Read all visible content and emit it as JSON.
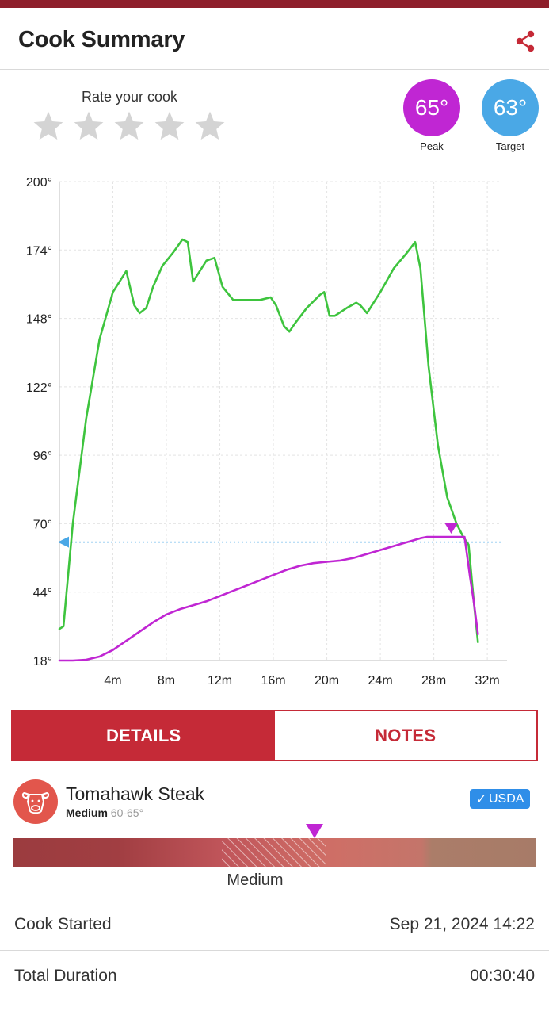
{
  "header": {
    "title": "Cook Summary",
    "share_icon": "share-icon"
  },
  "rating": {
    "label": "Rate your cook",
    "stars": 5,
    "selected": 0,
    "star_color": "#d4d4d4"
  },
  "badges": {
    "peak": {
      "value": "65°",
      "label": "Peak",
      "color": "#c026d3"
    },
    "target": {
      "value": "63°",
      "label": "Target",
      "color": "#4aa8e6"
    }
  },
  "chart_data": {
    "type": "line",
    "xlabel": "",
    "ylabel": "",
    "x_unit": "minutes",
    "xlim": [
      0,
      33
    ],
    "ylim": [
      18,
      200
    ],
    "x_ticks": [
      "4m",
      "8m",
      "12m",
      "16m",
      "20m",
      "24m",
      "28m",
      "32m"
    ],
    "x_tick_values": [
      4,
      8,
      12,
      16,
      20,
      24,
      28,
      32
    ],
    "y_ticks": [
      "18°",
      "44°",
      "70°",
      "96°",
      "122°",
      "148°",
      "174°",
      "200°"
    ],
    "y_tick_values": [
      18,
      44,
      70,
      96,
      122,
      148,
      174,
      200
    ],
    "grid": true,
    "target_line": {
      "value": 63,
      "color": "#4aa8e6",
      "style": "dotted"
    },
    "peak_marker": {
      "x": 29.3,
      "y": 65,
      "color": "#c026d3"
    },
    "series": [
      {
        "color": "#3ec43e",
        "points": [
          [
            0,
            30
          ],
          [
            0.3,
            31
          ],
          [
            1,
            70
          ],
          [
            2,
            110
          ],
          [
            3,
            140
          ],
          [
            4,
            158
          ],
          [
            5,
            166
          ],
          [
            5.6,
            153
          ],
          [
            6,
            150
          ],
          [
            6.5,
            152
          ],
          [
            7,
            160
          ],
          [
            7.7,
            168
          ],
          [
            8.5,
            173
          ],
          [
            9.2,
            178
          ],
          [
            9.6,
            177
          ],
          [
            10,
            162
          ],
          [
            11,
            170
          ],
          [
            11.6,
            171
          ],
          [
            12.2,
            160
          ],
          [
            13,
            155
          ],
          [
            14,
            155
          ],
          [
            15,
            155
          ],
          [
            15.8,
            156
          ],
          [
            16.2,
            153
          ],
          [
            16.8,
            145
          ],
          [
            17.2,
            143
          ],
          [
            17.6,
            146
          ],
          [
            18.5,
            152
          ],
          [
            19.5,
            157
          ],
          [
            19.8,
            158
          ],
          [
            20.2,
            149
          ],
          [
            20.6,
            149
          ],
          [
            21.5,
            152
          ],
          [
            22.2,
            154
          ],
          [
            22.5,
            153
          ],
          [
            23,
            150
          ],
          [
            24,
            158
          ],
          [
            25,
            167
          ],
          [
            26,
            173
          ],
          [
            26.6,
            177
          ],
          [
            27,
            167
          ],
          [
            27.6,
            130
          ],
          [
            28.3,
            100
          ],
          [
            29,
            80
          ],
          [
            29.7,
            70
          ],
          [
            30.2,
            65
          ],
          [
            30.6,
            62
          ],
          [
            31,
            40
          ],
          [
            31.3,
            25
          ]
        ]
      },
      {
        "color": "#c026d3",
        "points": [
          [
            0,
            18
          ],
          [
            1,
            18
          ],
          [
            2,
            18.3
          ],
          [
            3,
            19.5
          ],
          [
            4,
            22
          ],
          [
            5,
            25.5
          ],
          [
            6,
            29
          ],
          [
            7,
            32.5
          ],
          [
            8,
            35.5
          ],
          [
            9,
            37.5
          ],
          [
            10,
            39
          ],
          [
            11,
            40.5
          ],
          [
            12,
            42.5
          ],
          [
            13,
            44.5
          ],
          [
            14,
            46.5
          ],
          [
            15,
            48.5
          ],
          [
            16,
            50.5
          ],
          [
            17,
            52.5
          ],
          [
            18,
            54
          ],
          [
            19,
            55
          ],
          [
            20,
            55.5
          ],
          [
            21,
            56
          ],
          [
            22,
            57
          ],
          [
            23,
            58.5
          ],
          [
            24,
            60
          ],
          [
            25,
            61.5
          ],
          [
            26,
            63
          ],
          [
            27,
            64.5
          ],
          [
            27.5,
            65
          ],
          [
            28,
            65
          ],
          [
            29,
            65
          ],
          [
            30.3,
            65
          ],
          [
            30.7,
            50
          ],
          [
            31,
            40
          ],
          [
            31.3,
            28
          ]
        ]
      }
    ]
  },
  "tabs": {
    "details": "DETAILS",
    "notes": "NOTES"
  },
  "meat": {
    "name": "Tomahawk Steak",
    "doneness": "Medium",
    "range": "60-65°",
    "icon": "cow-icon",
    "usda": "USDA",
    "usda_color": "#2f8ee8"
  },
  "doneness_bar": {
    "label": "Medium",
    "level": 0.57
  },
  "details": {
    "cook_started_label": "Cook Started",
    "cook_started_value": "Sep 21, 2024 14:22",
    "total_duration_label": "Total Duration",
    "total_duration_value": "00:30:40"
  },
  "colors": {
    "brand": "#c52a37",
    "topbar": "#8e1f2b"
  }
}
